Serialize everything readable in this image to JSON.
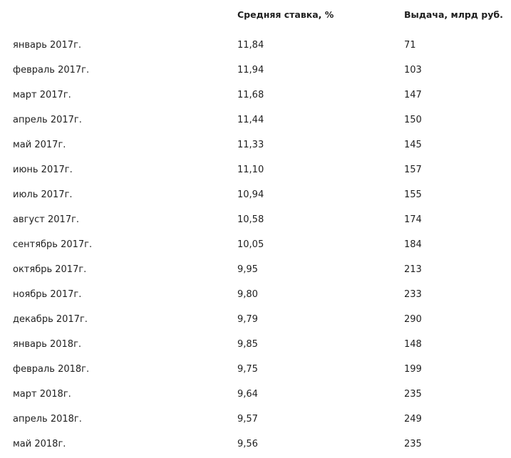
{
  "table": {
    "headers": {
      "month": "",
      "rate": "Средняя ставка, %",
      "volume": "Выдача, млрд руб."
    },
    "rows": [
      {
        "month": "январь 2017г.",
        "rate": "11,84",
        "volume": "71"
      },
      {
        "month": "февраль 2017г.",
        "rate": "11,94",
        "volume": "103"
      },
      {
        "month": "март 2017г.",
        "rate": "11,68",
        "volume": "147"
      },
      {
        "month": "апрель 2017г.",
        "rate": "11,44",
        "volume": "150"
      },
      {
        "month": "май 2017г.",
        "rate": "11,33",
        "volume": "145"
      },
      {
        "month": "июнь 2017г.",
        "rate": "11,10",
        "volume": "157"
      },
      {
        "month": "июль 2017г.",
        "rate": "10,94",
        "volume": "155"
      },
      {
        "month": "август 2017г.",
        "rate": "10,58",
        "volume": "174"
      },
      {
        "month": "сентябрь 2017г.",
        "rate": "10,05",
        "volume": "184"
      },
      {
        "month": "октябрь 2017г.",
        "rate": "9,95",
        "volume": "213"
      },
      {
        "month": "ноябрь 2017г.",
        "rate": "9,80",
        "volume": "233"
      },
      {
        "month": "декабрь 2017г.",
        "rate": "9,79",
        "volume": "290"
      },
      {
        "month": "январь 2018г.",
        "rate": "9,85",
        "volume": "148"
      },
      {
        "month": "февраль 2018г.",
        "rate": "9,75",
        "volume": "199"
      },
      {
        "month": "март 2018г.",
        "rate": "9,64",
        "volume": "235"
      },
      {
        "month": "апрель 2018г.",
        "rate": "9,57",
        "volume": "249"
      },
      {
        "month": "май 2018г.",
        "rate": "9,56",
        "volume": "235"
      }
    ]
  }
}
